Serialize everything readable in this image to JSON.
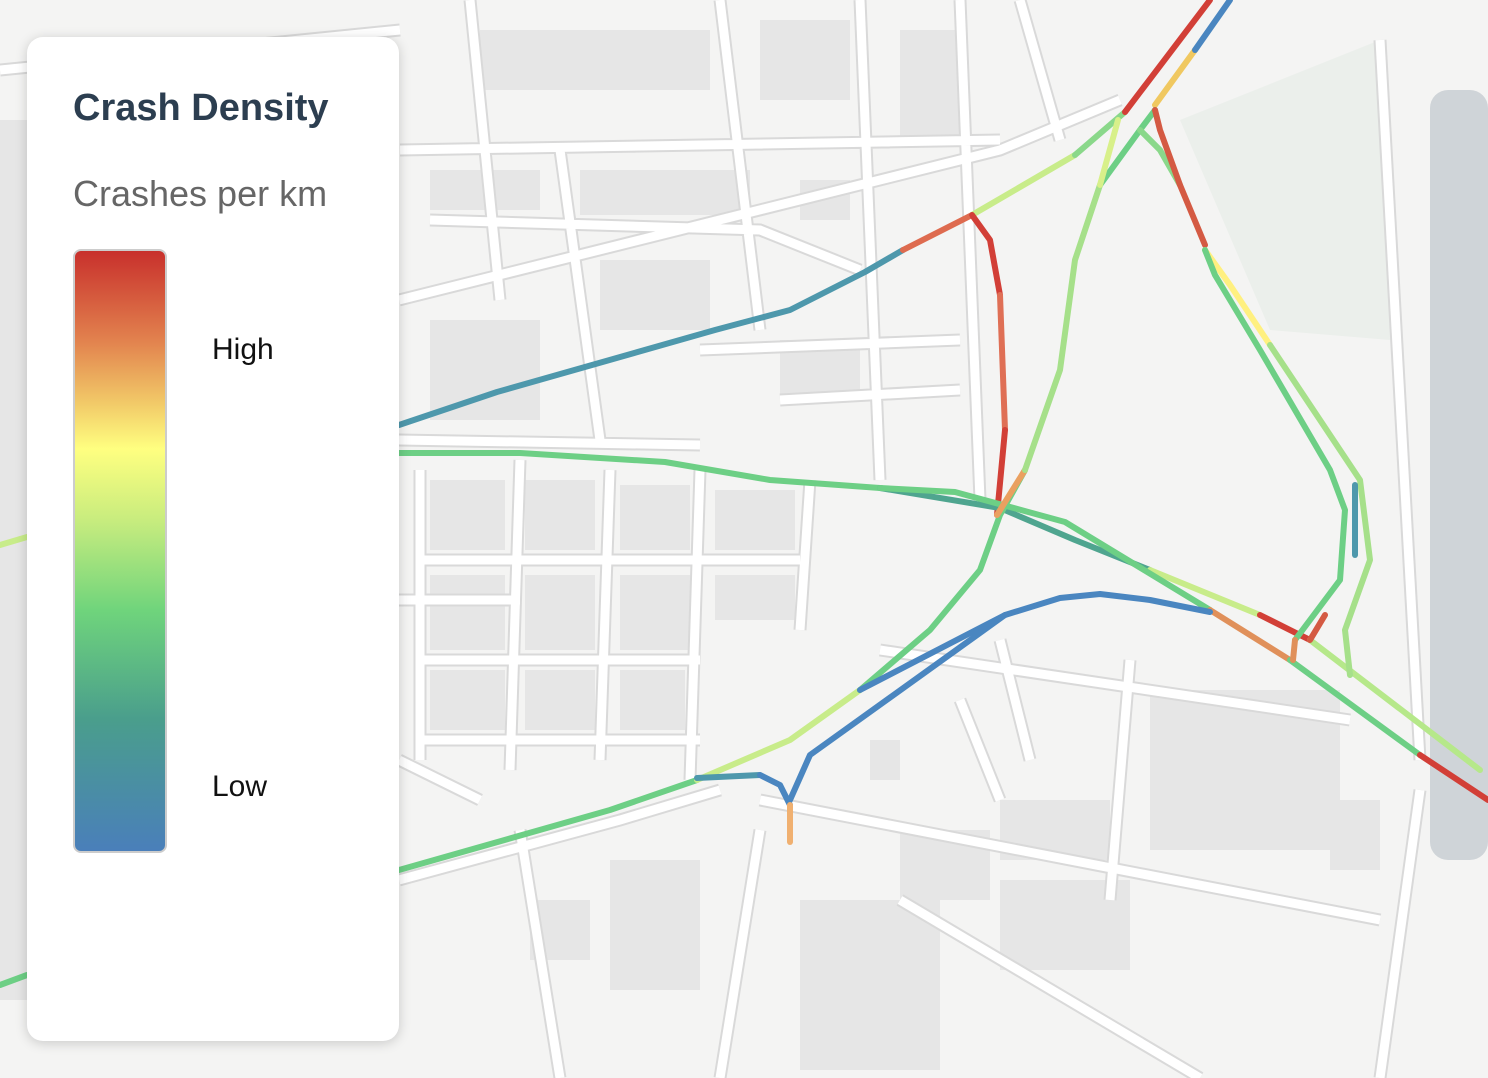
{
  "legend": {
    "title": "Crash Density",
    "subtitle": "Crashes per km",
    "high_label": "High",
    "low_label": "Low"
  }
}
